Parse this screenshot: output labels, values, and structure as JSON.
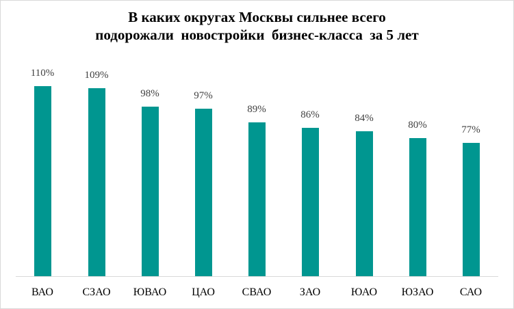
{
  "chart_data": {
    "type": "bar",
    "title": "В каких округах Москвы сильнее всего подорожали новостройки бизнес-класса за 5 лет",
    "title_lines": [
      "В каких округах Москвы сильнее всего",
      "подорожали  новостройки  бизнес-класса  за 5 лет"
    ],
    "categories": [
      "ВАО",
      "СЗАО",
      "ЮВАО",
      "ЦАО",
      "СВАО",
      "ЗАО",
      "ЮАО",
      "ЮЗАО",
      "САО"
    ],
    "values": [
      110,
      109,
      98,
      97,
      89,
      86,
      84,
      80,
      77
    ],
    "labels": [
      "110%",
      "109%",
      "98%",
      "97%",
      "89%",
      "86%",
      "84%",
      "80%",
      "77%"
    ],
    "xlabel": "",
    "ylabel": "",
    "unit": "%",
    "ylim": [
      0,
      110
    ],
    "grid": false,
    "legend": null,
    "colors": {
      "bar": "#009690",
      "axis": "#d9d9d9",
      "label": "#404040"
    }
  }
}
